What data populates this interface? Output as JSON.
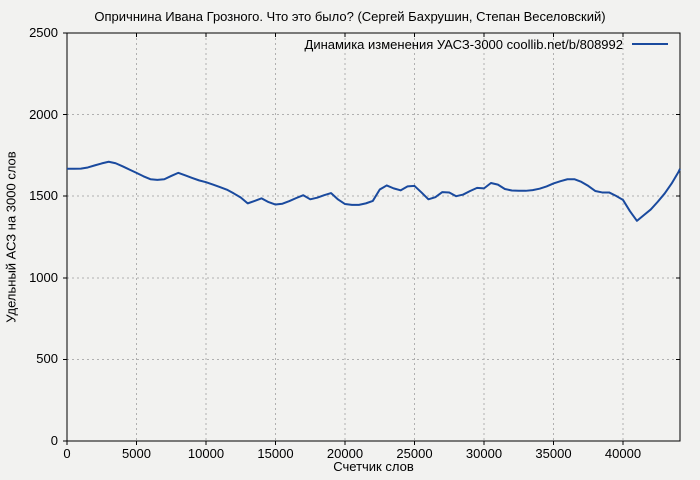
{
  "title": "Опричнина Ивана Грозного. Что это было? (Сергей Бахрушин, Степан Веселовский)",
  "legend": {
    "label": "Динамика изменения УАСЗ-3000 coollib.net/b/808992"
  },
  "axes": {
    "x": {
      "label": "Счетчик слов"
    },
    "y": {
      "label": "Удельный АСЗ на 3000 слов"
    }
  },
  "colors": {
    "background": "#f2f2f0",
    "line": "#1a4a9e",
    "grid": "#b0b0b0",
    "axis": "#000000",
    "text": "#000000"
  },
  "chart_data": {
    "type": "line",
    "title": "Опричнина Ивана Грозного. Что это было? (Сергей Бахрушин, Степан Веселовский)",
    "xlabel": "Счетчик слов",
    "ylabel": "Удельный АСЗ на 3000 слов",
    "xlim": [
      0,
      44100
    ],
    "ylim": [
      0,
      2500
    ],
    "x_ticks": [
      0,
      5000,
      10000,
      15000,
      20000,
      25000,
      30000,
      35000,
      40000
    ],
    "y_ticks": [
      0,
      500,
      1000,
      1500,
      2000,
      2500
    ],
    "grid": true,
    "legend_position": "top-right",
    "series": [
      {
        "name": "Динамика изменения УАСЗ-3000 coollib.net/b/808992",
        "color": "#1a4a9e",
        "x": [
          0,
          500,
          1000,
          1500,
          2000,
          2500,
          3000,
          3500,
          4000,
          4500,
          5000,
          5500,
          6000,
          6500,
          7000,
          7500,
          8000,
          8500,
          9000,
          9500,
          10000,
          10500,
          11000,
          11500,
          12000,
          12500,
          13000,
          13500,
          14000,
          14500,
          15000,
          15500,
          16000,
          16500,
          17000,
          17500,
          18000,
          18500,
          19000,
          19500,
          20000,
          20500,
          21000,
          21500,
          22000,
          22500,
          23000,
          23500,
          24000,
          24500,
          25000,
          25500,
          26000,
          26500,
          27000,
          27500,
          28000,
          28500,
          29000,
          29500,
          30000,
          30500,
          31000,
          31500,
          32000,
          32500,
          33000,
          33500,
          34000,
          34500,
          35000,
          35500,
          36000,
          36500,
          37000,
          37500,
          38000,
          38500,
          39000,
          39500,
          40000,
          40500,
          41000,
          41500,
          42000,
          42500,
          43000,
          43500,
          44000,
          44100
        ],
        "y": [
          1668,
          1668,
          1669,
          1676,
          1689,
          1701,
          1711,
          1702,
          1683,
          1663,
          1643,
          1622,
          1604,
          1600,
          1604,
          1624,
          1643,
          1628,
          1612,
          1597,
          1586,
          1571,
          1556,
          1540,
          1517,
          1492,
          1456,
          1471,
          1487,
          1464,
          1449,
          1454,
          1470,
          1489,
          1506,
          1481,
          1491,
          1506,
          1519,
          1480,
          1452,
          1447,
          1447,
          1456,
          1471,
          1541,
          1566,
          1548,
          1536,
          1560,
          1563,
          1523,
          1481,
          1494,
          1525,
          1523,
          1500,
          1510,
          1532,
          1551,
          1548,
          1581,
          1571,
          1544,
          1535,
          1533,
          1533,
          1537,
          1546,
          1560,
          1578,
          1592,
          1604,
          1604,
          1588,
          1563,
          1532,
          1523,
          1523,
          1502,
          1477,
          1408,
          1349,
          1384,
          1419,
          1466,
          1517,
          1578,
          1650,
          1668
        ]
      }
    ]
  }
}
